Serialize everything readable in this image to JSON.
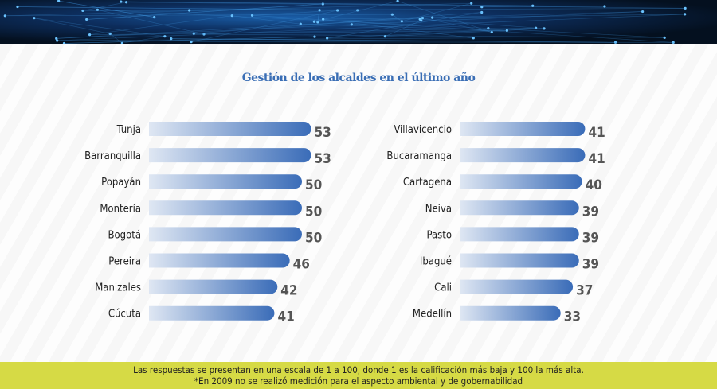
{
  "chart_data": [
    {
      "type": "bar",
      "orientation": "horizontal",
      "title": "Gestión de los alcaldes en el último año",
      "categories": [
        "Tunja",
        "Barranquilla",
        "Popayán",
        "Montería",
        "Bogotá",
        "Pereira",
        "Manizales",
        "Cúcuta"
      ],
      "values": [
        53,
        53,
        50,
        50,
        50,
        46,
        42,
        41
      ],
      "xlim": [
        0,
        100
      ],
      "grid": false,
      "colors": {
        "bar_start": "#dfe7f3",
        "bar_end": "#3a6cb8"
      }
    },
    {
      "type": "bar",
      "orientation": "horizontal",
      "categories": [
        "Villavicencio",
        "Bucaramanga",
        "Cartagena",
        "Neiva",
        "Pasto",
        "Ibagué",
        "Cali",
        "Medellín"
      ],
      "values": [
        41,
        41,
        40,
        39,
        39,
        39,
        37,
        33
      ],
      "xlim": [
        0,
        100
      ],
      "grid": false
    }
  ],
  "footer": {
    "line1": "Las respuestas se presentan en una escala de 1 a 100, donde 1 es la calificación más baja y 100 la más alta.",
    "line2": "*En 2009 no se realizó medición para el aspecto ambiental y de gobernabilidad"
  }
}
